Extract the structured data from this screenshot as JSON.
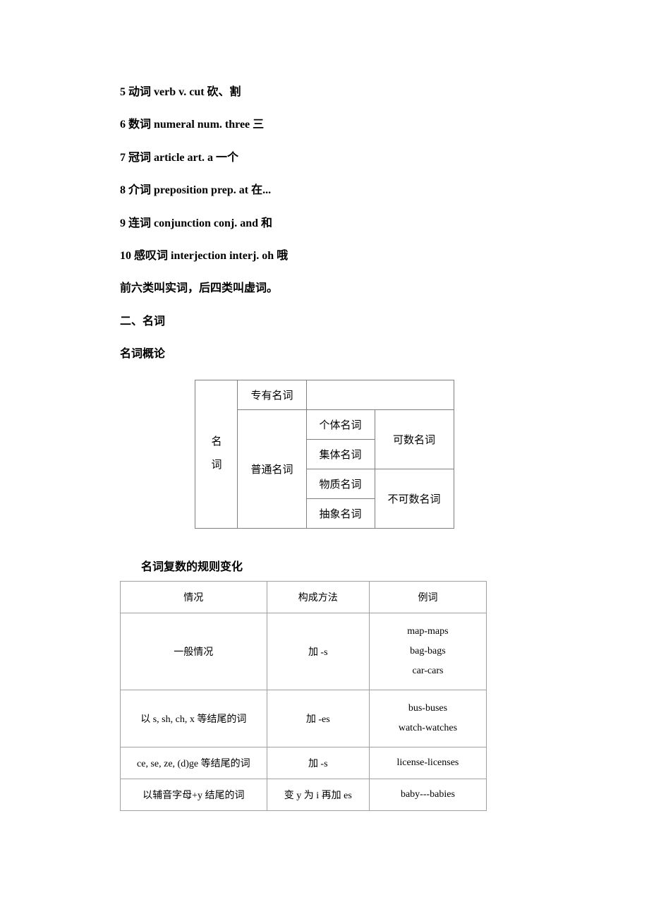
{
  "lines": {
    "l5": "5 动词 verb v. cut 砍、割",
    "l6": "6 数词 numeral num. three 三",
    "l7": "7 冠词 article art. a 一个",
    "l8": "8 介词 preposition prep. at 在...",
    "l9": "9 连词 conjunction conj. and 和",
    "l10": "10 感叹词 interjection interj. oh 哦",
    "note": "前六类叫实词，后四类叫虚词。",
    "section2": "二、名词",
    "nounIntro": "名词概论"
  },
  "table1": {
    "rowhead": "名\n词",
    "r1c2": "专有名词",
    "r2c2": "普通名词",
    "r1c3": "",
    "r2c3": "个体名词",
    "r3c3": "集体名词",
    "r4c3": "物质名词",
    "r5c3": "抽象名词",
    "r2c4": "可数名词",
    "r4c4": "不可数名词"
  },
  "table2": {
    "title": "名词复数的规则变化",
    "headers": {
      "c1": "情况",
      "c2": "构成方法",
      "c3": "例词"
    },
    "rows": {
      "r1": {
        "c1": "一般情况",
        "c2": "加 -s",
        "c3": "map-maps\nbag-bags\ncar-cars"
      },
      "r2": {
        "c1": "以 s, sh, ch, x 等结尾的词",
        "c2": "加 -es",
        "c3": "bus-buses\nwatch-watches"
      },
      "r3": {
        "c1": "ce, se, ze, (d)ge 等结尾的词",
        "c2": "加 -s",
        "c3": "license-licenses"
      },
      "r4": {
        "c1": "以辅音字母+y 结尾的词",
        "c2": "变 y 为 i 再加 es",
        "c3": "baby---babies"
      }
    }
  }
}
